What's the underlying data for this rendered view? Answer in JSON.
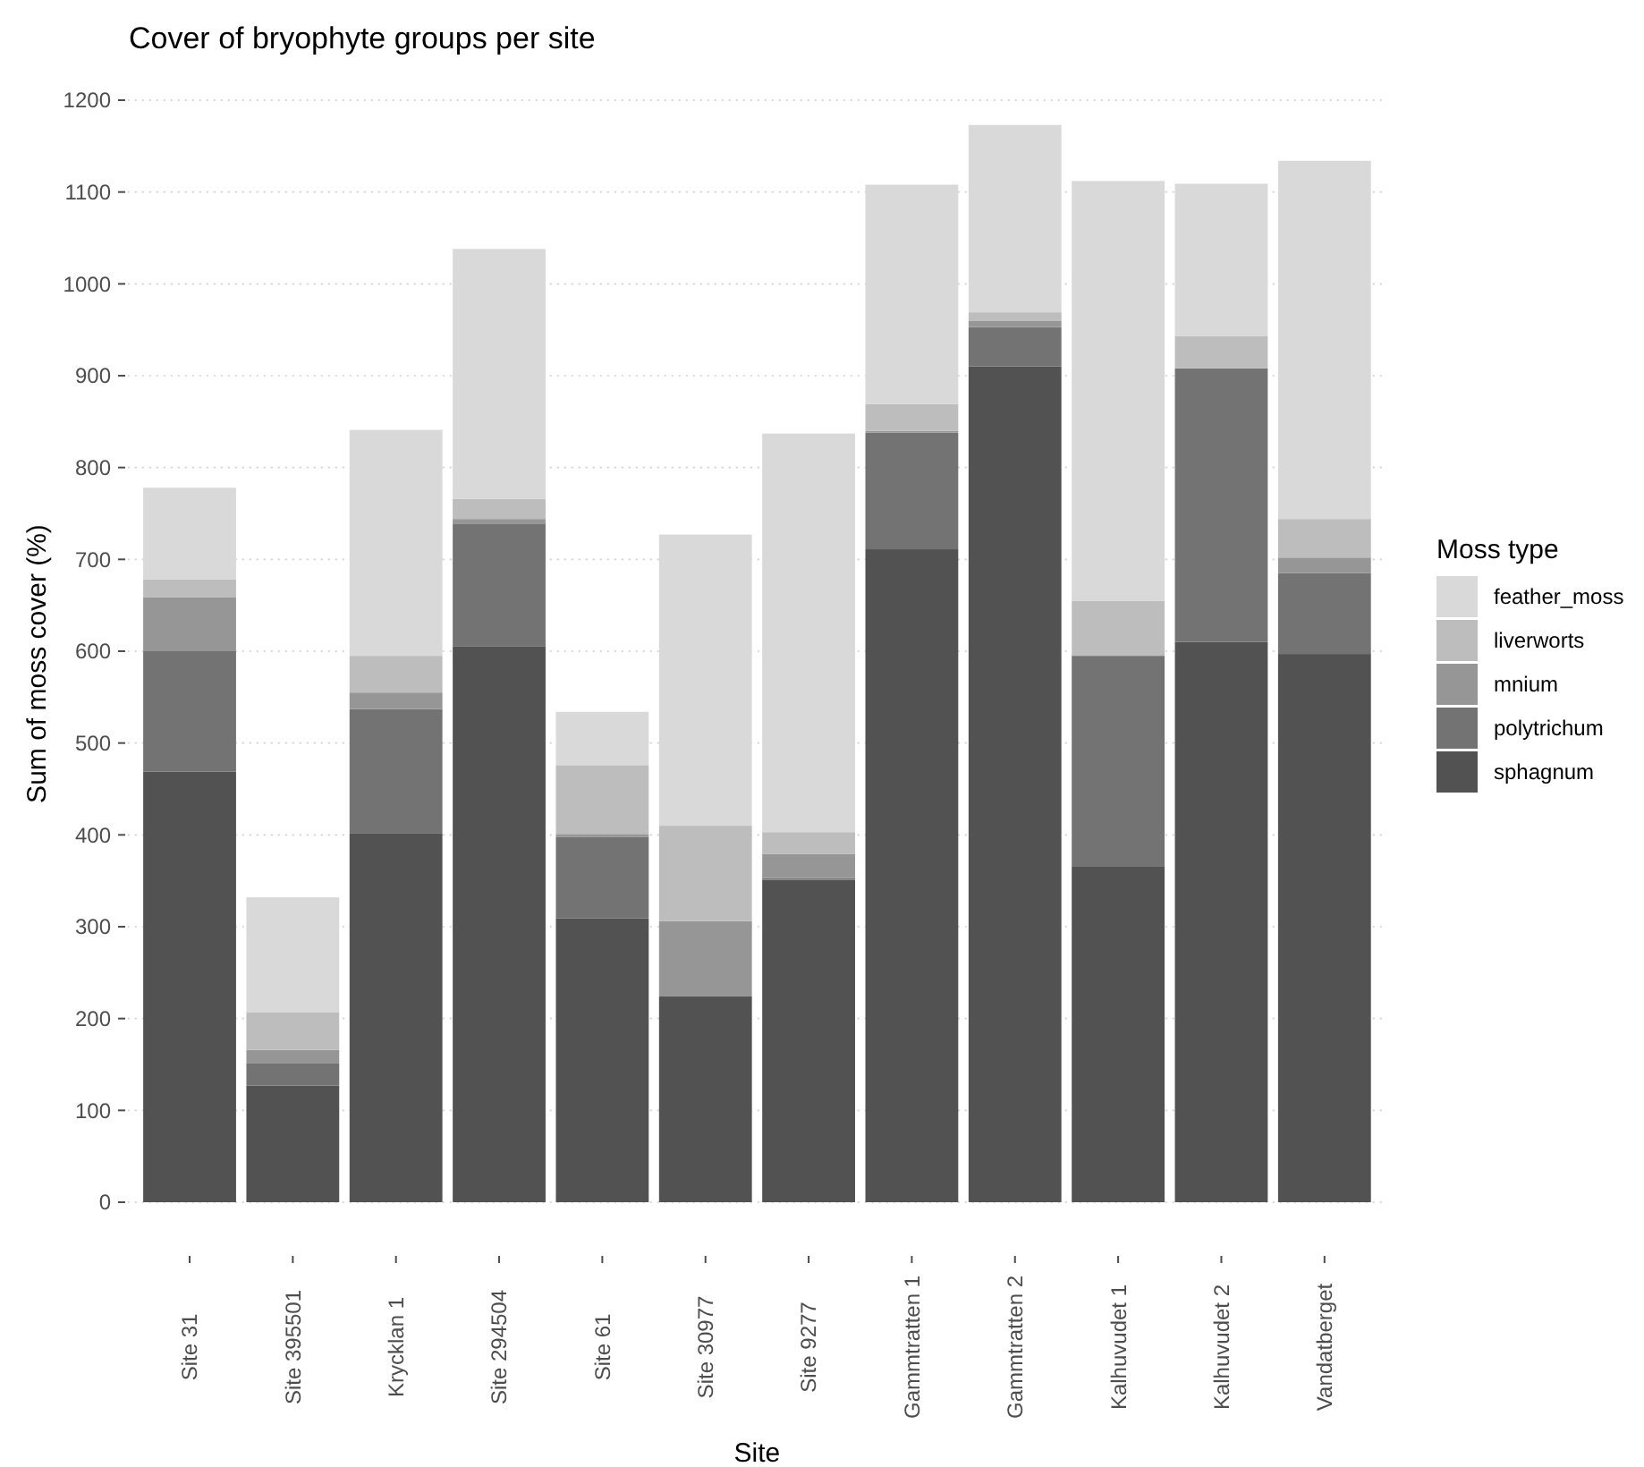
{
  "chart_data": {
    "type": "bar",
    "title": "Cover of bryophyte groups per site",
    "xlabel": "Site",
    "ylabel": "Sum of moss cover (%)",
    "legend_title": "Moss type",
    "categories": [
      "Site 31",
      "Site 395501",
      "Krycklan 1",
      "Site 294504",
      "Site 61",
      "Site 30977",
      "Site 9277",
      "Gammtratten 1",
      "Gammtratten 2",
      "Kalhuvudet 1",
      "Kalhuvudet 2",
      "Vandatberget"
    ],
    "series": [
      {
        "name": "sphagnum",
        "color": "#525252",
        "values": [
          469,
          127,
          402,
          605,
          309,
          224,
          351,
          711,
          910,
          366,
          610,
          597
        ]
      },
      {
        "name": "polytrichum",
        "color": "#737373",
        "values": [
          131,
          24,
          135,
          134,
          89,
          null,
          2,
          127,
          43,
          229,
          298,
          88
        ]
      },
      {
        "name": "mnium",
        "color": "#969696",
        "values": [
          59,
          15,
          18,
          5,
          3,
          82,
          26,
          2,
          7,
          null,
          null,
          17
        ]
      },
      {
        "name": "liverworts",
        "color": "#bdbdbd",
        "values": [
          19,
          41,
          40,
          22,
          75,
          104,
          24,
          29,
          9,
          60,
          35,
          42
        ]
      },
      {
        "name": "feather_moss",
        "color": "#d9d9d9",
        "values": [
          100,
          125,
          246,
          272,
          58,
          317,
          434,
          239,
          204,
          457,
          166,
          390
        ]
      }
    ],
    "stacked": true,
    "ylim": [
      0,
      1200
    ],
    "yticks": [
      0,
      100,
      200,
      300,
      400,
      500,
      600,
      700,
      800,
      900,
      1000,
      1100,
      1200
    ],
    "grid": "y",
    "legend": "right"
  }
}
